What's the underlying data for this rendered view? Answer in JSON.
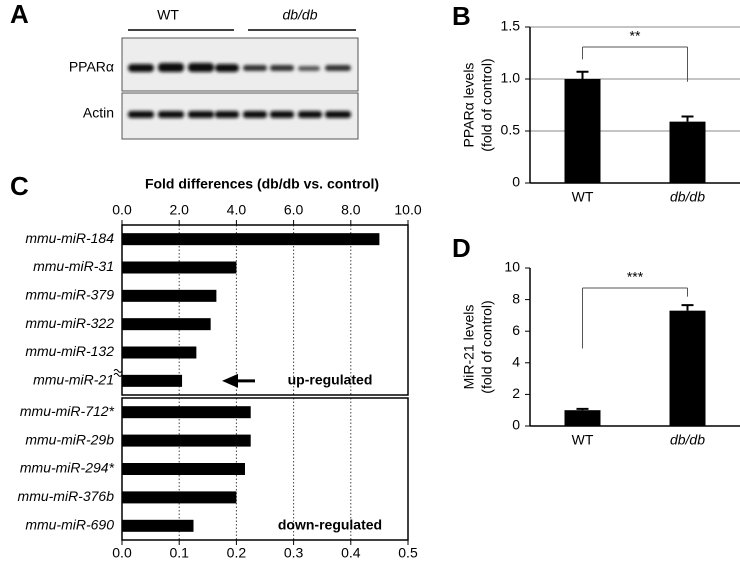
{
  "panel_a": {
    "letter": "A",
    "groups": [
      "WT",
      "db/db"
    ],
    "rows": [
      "PPARα",
      "Actin"
    ]
  },
  "chart_data": [
    {
      "type": "bar",
      "panel": "B",
      "categories": [
        "WT",
        "db/db"
      ],
      "values": [
        1.0,
        0.59
      ],
      "errors": [
        0.07,
        0.05
      ],
      "color": "#000000",
      "ylabel": [
        "PPARα levels",
        "(fold of control)"
      ],
      "ylim": [
        0,
        1.5
      ],
      "yticks": [
        0,
        0.5,
        {
          "value": 1,
          "label": "1.0"
        },
        1.5
      ],
      "grid": true,
      "annotation": "**"
    },
    {
      "type": "barh",
      "panel": "C",
      "title": "Fold differences (db/db vs. control)",
      "categories": [
        "mmu-miR-184",
        "mmu-miR-31",
        "mmu-miR-379",
        "mmu-miR-322",
        "mmu-miR-132",
        "mmu-miR-21"
      ],
      "values": [
        9.0,
        4.0,
        3.3,
        3.1,
        2.6,
        2.1
      ],
      "color": "#000000",
      "xlim": [
        0,
        10
      ],
      "xticks": [
        {
          "value": 0,
          "label": "0.0"
        },
        {
          "value": 2,
          "label": "2.0"
        },
        {
          "value": 4,
          "label": "4.0"
        },
        {
          "value": 6,
          "label": "6.0"
        },
        {
          "value": 8,
          "label": "8.0"
        },
        {
          "value": 10,
          "label": "10.0"
        }
      ],
      "xaxis": "top",
      "grid": true,
      "annotation": "up-regulated"
    },
    {
      "type": "barh",
      "categories": [
        "mmu-miR-712*",
        "mmu-miR-29b",
        "mmu-miR-294*",
        "mmu-miR-376b",
        "mmu-miR-690"
      ],
      "values": [
        0.225,
        0.225,
        0.215,
        0.2,
        0.125
      ],
      "color": "#000000",
      "xlim": [
        0,
        0.5
      ],
      "xticks": [
        {
          "value": 0,
          "label": "0.0"
        },
        0.1,
        0.2,
        0.3,
        0.4,
        0.5
      ],
      "xaxis": "bottom",
      "grid": true,
      "annotation": "down-regulated"
    },
    {
      "type": "bar",
      "panel": "D",
      "categories": [
        "WT",
        "db/db"
      ],
      "values": [
        1.0,
        7.3
      ],
      "errors": [
        0.08,
        0.35
      ],
      "color": "#000000",
      "ylabel": [
        "MiR-21 levels",
        "(fold of control)"
      ],
      "ylim": [
        0,
        10
      ],
      "yticks": [
        0,
        2,
        4,
        6,
        8,
        10
      ],
      "grid": false,
      "annotation": "***"
    }
  ]
}
